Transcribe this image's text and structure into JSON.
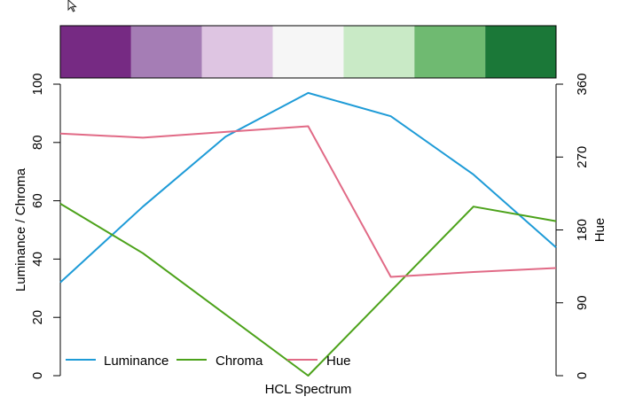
{
  "chart_data": {
    "type": "line",
    "swatches": [
      "#762A83",
      "#A57DB5",
      "#DEC5E2",
      "#F6F6F6",
      "#C9EAC6",
      "#6FBA71",
      "#1B7838"
    ],
    "x": [
      1,
      2,
      3,
      4,
      5,
      6,
      7
    ],
    "xlabel": "HCL Spectrum",
    "ylabel_left": "Luminance / Chroma",
    "ylabel_right": "Hue",
    "ylim_left": [
      0,
      100
    ],
    "ylim_right": [
      0,
      360
    ],
    "yticks_left": [
      "0",
      "20",
      "40",
      "60",
      "80",
      "100"
    ],
    "yticks_right": [
      "0",
      "90",
      "180",
      "270",
      "360"
    ],
    "grid": false,
    "legend_position": "bottom-left",
    "series": [
      {
        "name": "Luminance",
        "axis": "left",
        "color": "#1E9BD7",
        "values": [
          32,
          58,
          82,
          97,
          89,
          69,
          44
        ]
      },
      {
        "name": "Chroma",
        "axis": "left",
        "color": "#4CA21A",
        "values": [
          59,
          42,
          21,
          0,
          29,
          58,
          53
        ]
      },
      {
        "name": "Hue",
        "axis": "right",
        "color": "#E16A86",
        "values": [
          299,
          294,
          301,
          308,
          122,
          128,
          133
        ]
      }
    ]
  }
}
